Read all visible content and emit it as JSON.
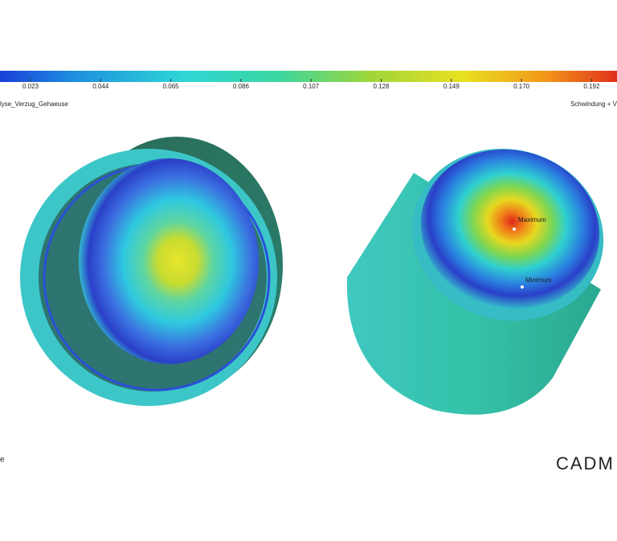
{
  "colorbar": {
    "ticks": [
      "0.023",
      "0.044",
      "0.065",
      "0.086",
      "0.107",
      "0.128",
      "0.149",
      "0.170",
      "0.192"
    ]
  },
  "left_caption": "lyse_Verzug_Gehaeuse",
  "right_caption": "Schwindung + V",
  "bottom_left": "e",
  "markers": {
    "max": "Maximum",
    "min": "Minimum"
  },
  "logo": "CADM"
}
